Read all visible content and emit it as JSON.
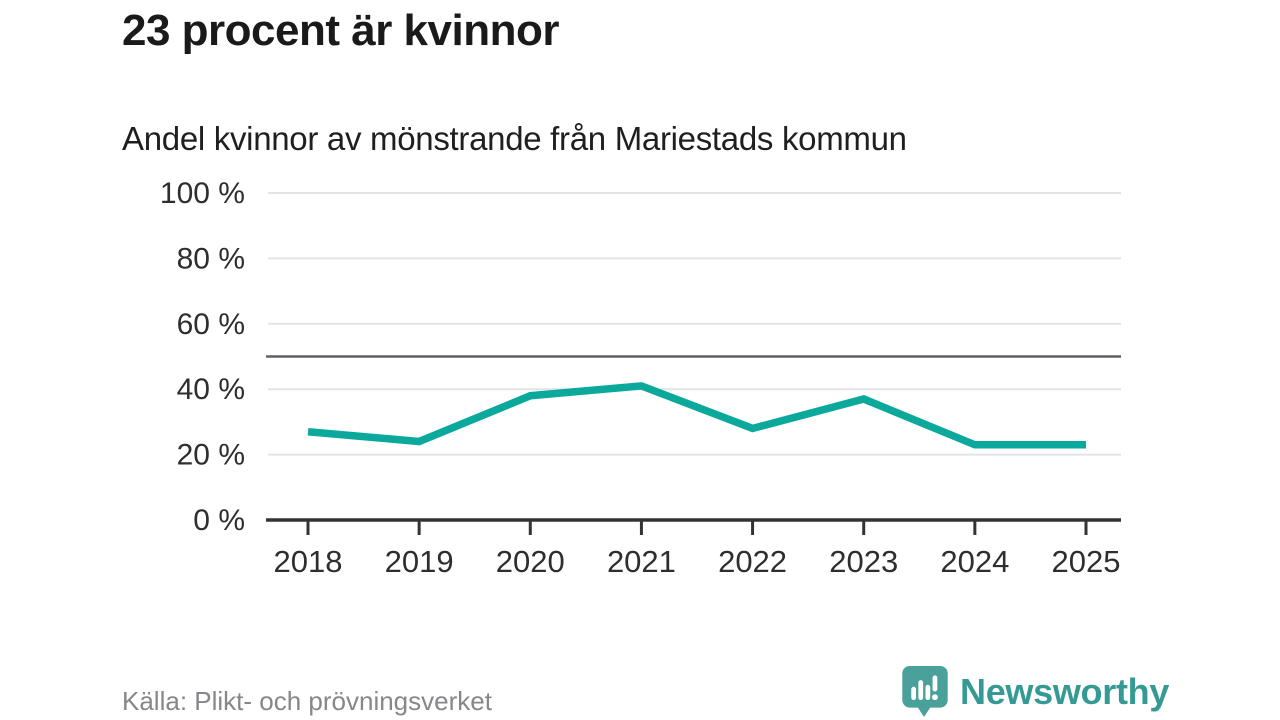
{
  "header": {
    "title": "23 procent är kvinnor",
    "subtitle": "Andel kvinnor av mönstrande från Mariestads kommun"
  },
  "chart_data": {
    "type": "line",
    "title": "Andel kvinnor av mönstrande från Mariestads kommun",
    "categories": [
      "2018",
      "2019",
      "2020",
      "2021",
      "2022",
      "2023",
      "2024",
      "2025"
    ],
    "series": [
      {
        "name": "Andel kvinnor",
        "values": [
          27,
          24,
          38,
          41,
          28,
          37,
          23,
          23
        ]
      }
    ],
    "xlabel": "",
    "ylabel": "",
    "ylim": [
      0,
      100
    ],
    "yticks": [
      0,
      20,
      40,
      60,
      80,
      100
    ],
    "ytick_suffix": " %",
    "reference_line": 50,
    "grid": true,
    "legend": "none"
  },
  "footer": {
    "source": "Källa: Plikt- och prövningsverket",
    "brand": "Newsworthy"
  },
  "icons": {
    "brand_logo": "newsworthy-speech-bubble-bar-chart-icon"
  },
  "colors": {
    "line": "#0ba89c",
    "reference_line": "#5e5f66",
    "grid": "#e4e4e6",
    "axis": "#333333",
    "tick_text": "#2e2e2e",
    "title_text": "#1a1a1a",
    "muted_text": "#87868c",
    "logo_bubble": "#4aa09b",
    "brand_text": "#359a94"
  }
}
